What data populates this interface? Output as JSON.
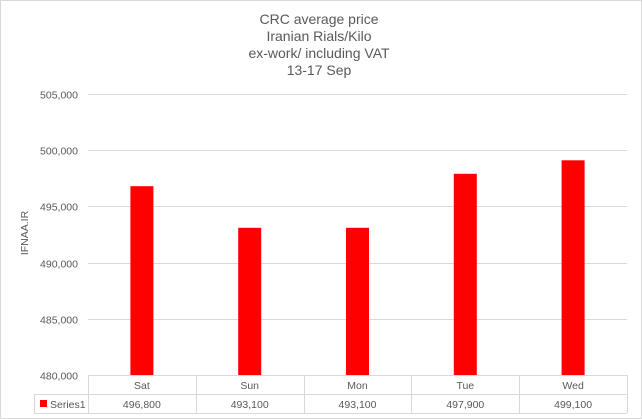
{
  "chart_data": {
    "type": "bar",
    "title_lines": [
      "CRC average price",
      "Iranian Rials/Kilo",
      "ex-work/ including VAT",
      "13-17 Sep"
    ],
    "xlabel": "",
    "ylabel": "IFNAA.IR",
    "ylim": [
      480000,
      505000
    ],
    "y_ticks": [
      480000,
      485000,
      490000,
      495000,
      500000,
      505000
    ],
    "y_tick_labels": [
      "480,000",
      "485,000",
      "490,000",
      "495,000",
      "500,000",
      "505,000"
    ],
    "grid": true,
    "categories": [
      "Sat",
      "Sun",
      "Mon",
      "Tue",
      "Wed"
    ],
    "series": [
      {
        "name": "Series1",
        "color": "#ff0000",
        "values": [
          496800,
          493100,
          493100,
          497900,
          499100
        ],
        "value_labels": [
          "496,800",
          "493,100",
          "493,100",
          "497,900",
          "499,100"
        ]
      }
    ],
    "data_table": true
  }
}
